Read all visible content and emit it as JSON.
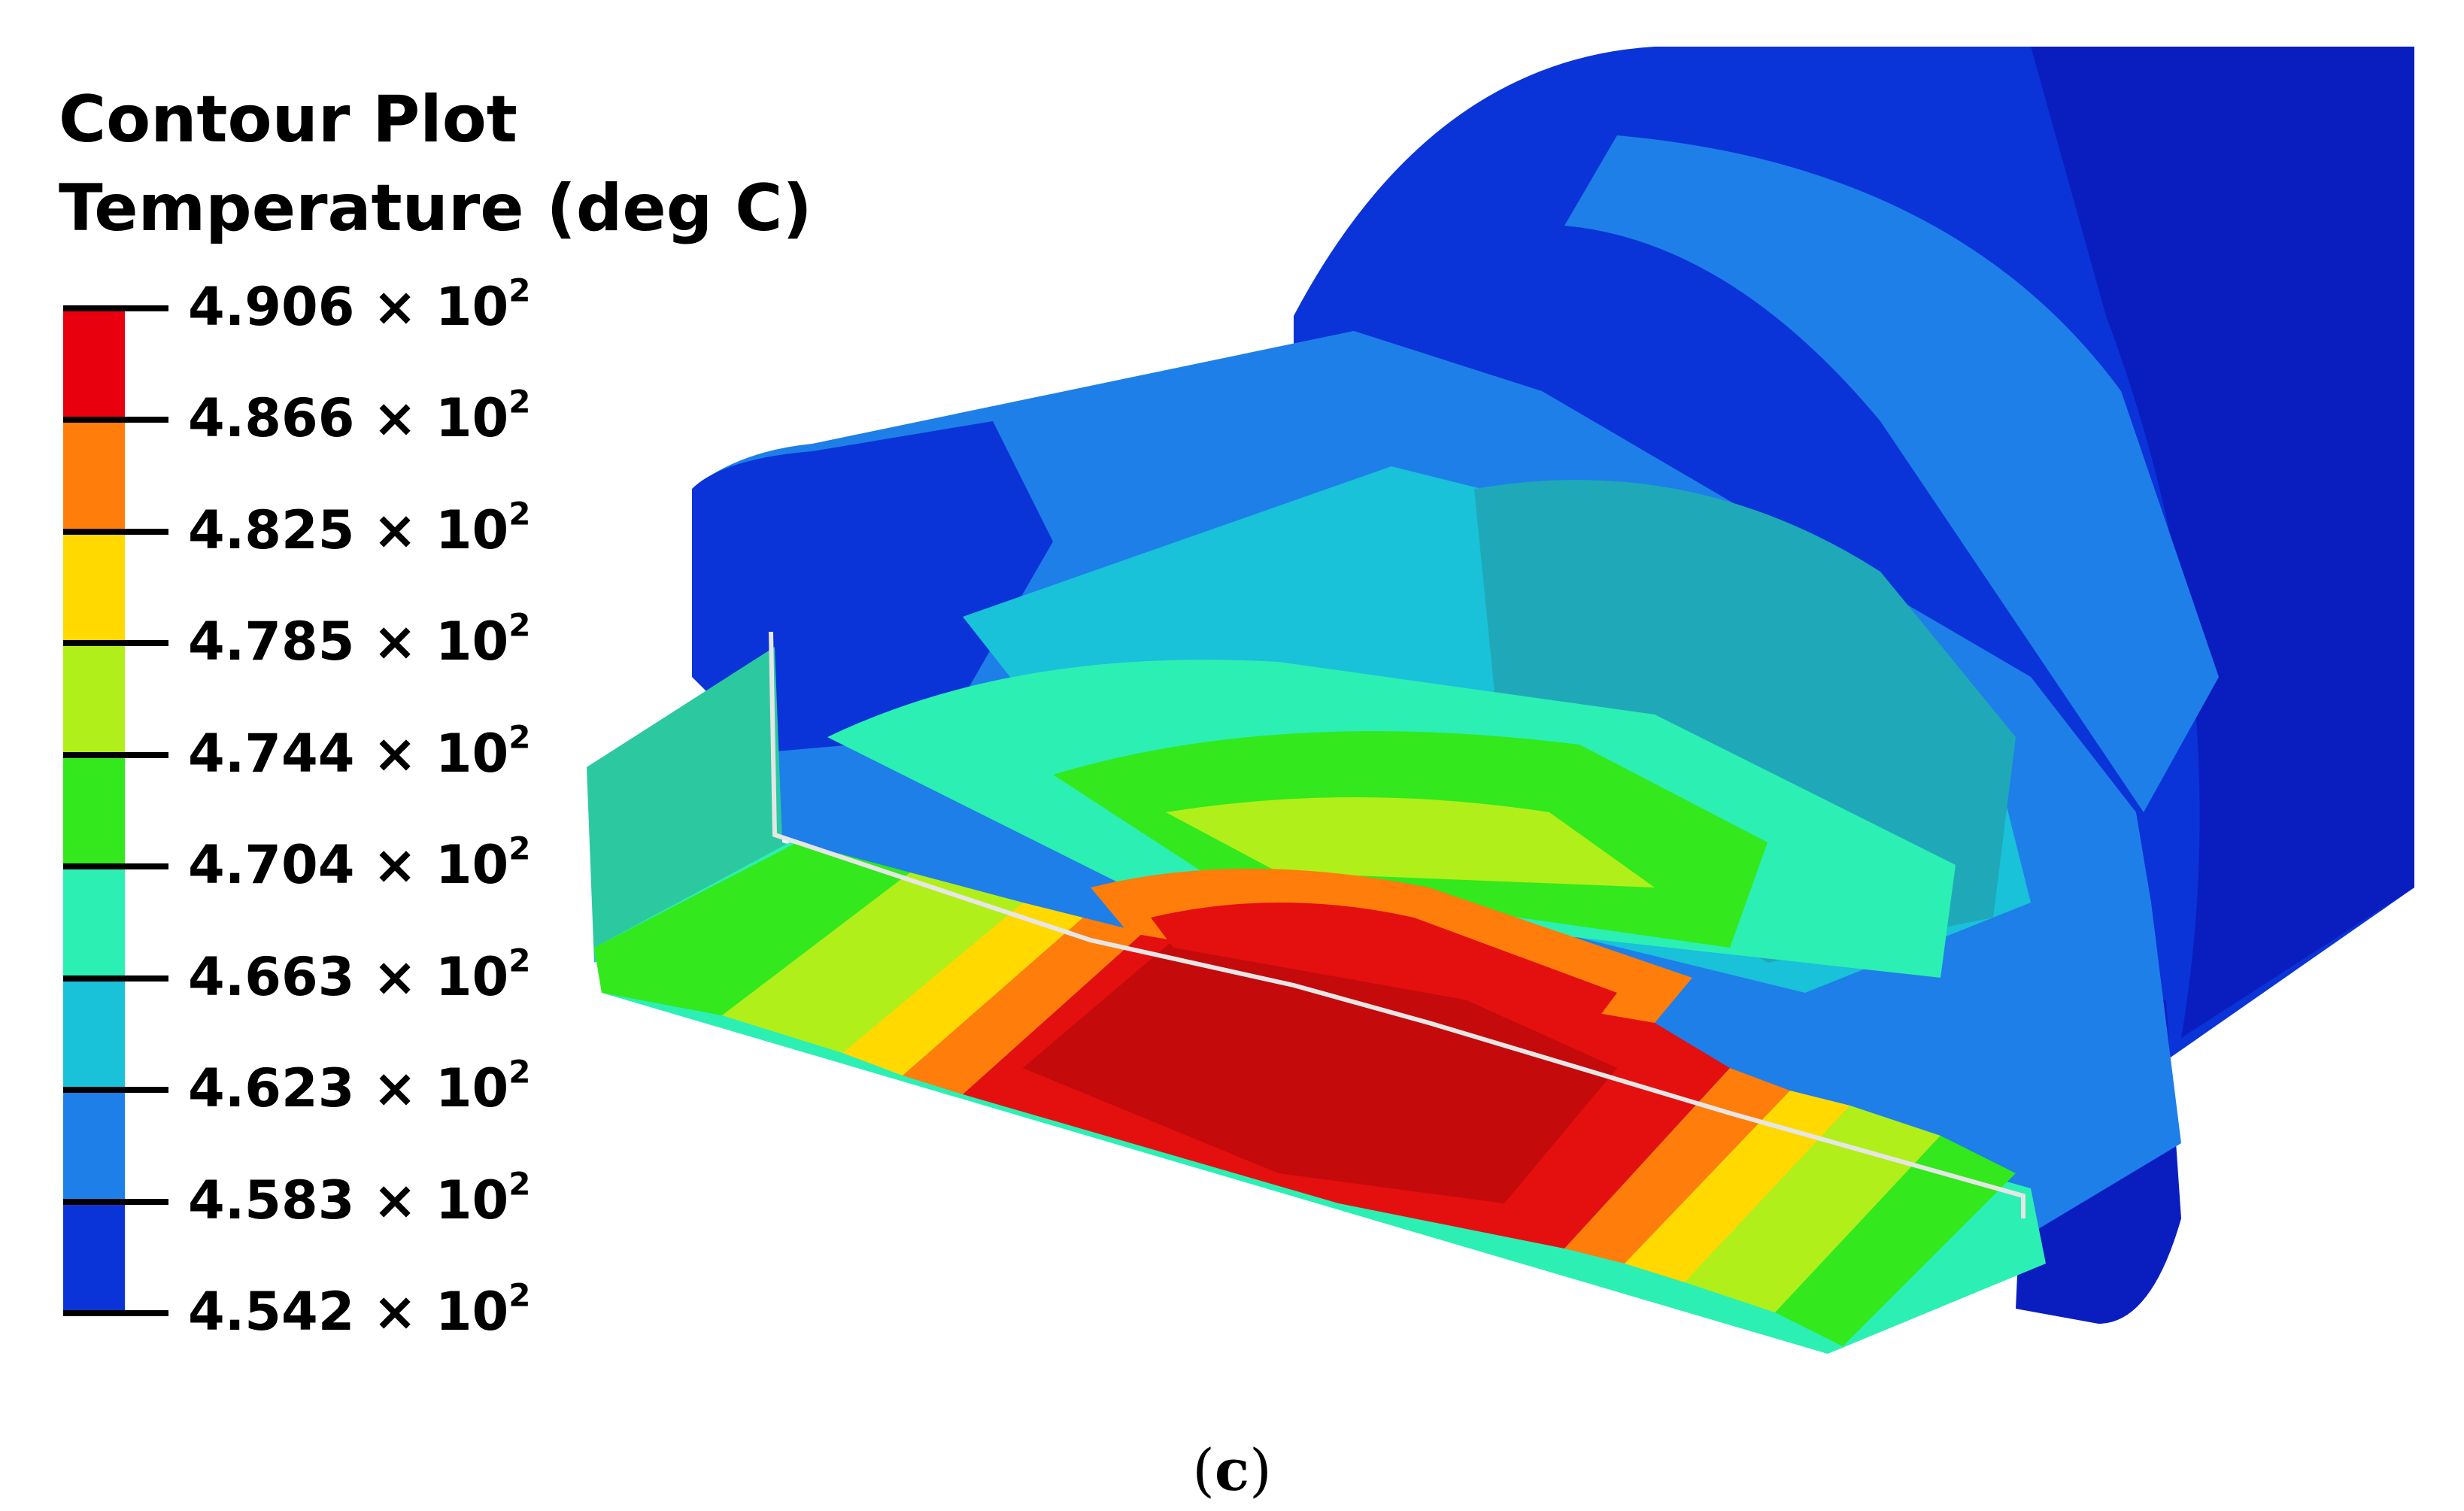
{
  "legend": {
    "title_line1": "Contour Plot",
    "title_line2": "Temperature (deg C)",
    "ticks": [
      {
        "mantissa": "4.906",
        "times": "×",
        "base": "10",
        "exp": "2"
      },
      {
        "mantissa": "4.866",
        "times": "×",
        "base": "10",
        "exp": "2"
      },
      {
        "mantissa": "4.825",
        "times": "×",
        "base": "10",
        "exp": "2"
      },
      {
        "mantissa": "4.785",
        "times": "×",
        "base": "10",
        "exp": "2"
      },
      {
        "mantissa": "4.744",
        "times": "×",
        "base": "10",
        "exp": "2"
      },
      {
        "mantissa": "4.704",
        "times": "×",
        "base": "10",
        "exp": "2"
      },
      {
        "mantissa": "4.663",
        "times": "×",
        "base": "10",
        "exp": "2"
      },
      {
        "mantissa": "4.623",
        "times": "×",
        "base": "10",
        "exp": "2"
      },
      {
        "mantissa": "4.583",
        "times": "×",
        "base": "10",
        "exp": "2"
      },
      {
        "mantissa": "4.542",
        "times": "×",
        "base": "10",
        "exp": "2"
      }
    ],
    "band_colors": [
      "#e8000e",
      "#ff7d0a",
      "#ffd900",
      "#b0ef1a",
      "#33e81c",
      "#2cefb4",
      "#19c1d9",
      "#1e7fe8",
      "#0a34d8"
    ]
  },
  "model_colors": {
    "red": "#e40f0f",
    "dark_red": "#c40a0a",
    "orange": "#ff7d0a",
    "yellow": "#ffd900",
    "yellow_green": "#b0ef1a",
    "green": "#33e81c",
    "teal_green": "#2cc9a0",
    "aqua": "#2cefb4",
    "cyan": "#19c1d9",
    "light_blue": "#1e7fe8",
    "blue": "#0a34d8",
    "navy": "#0a1ec0"
  },
  "caption": {
    "open": "(",
    "letter": "c",
    "close": ")"
  }
}
